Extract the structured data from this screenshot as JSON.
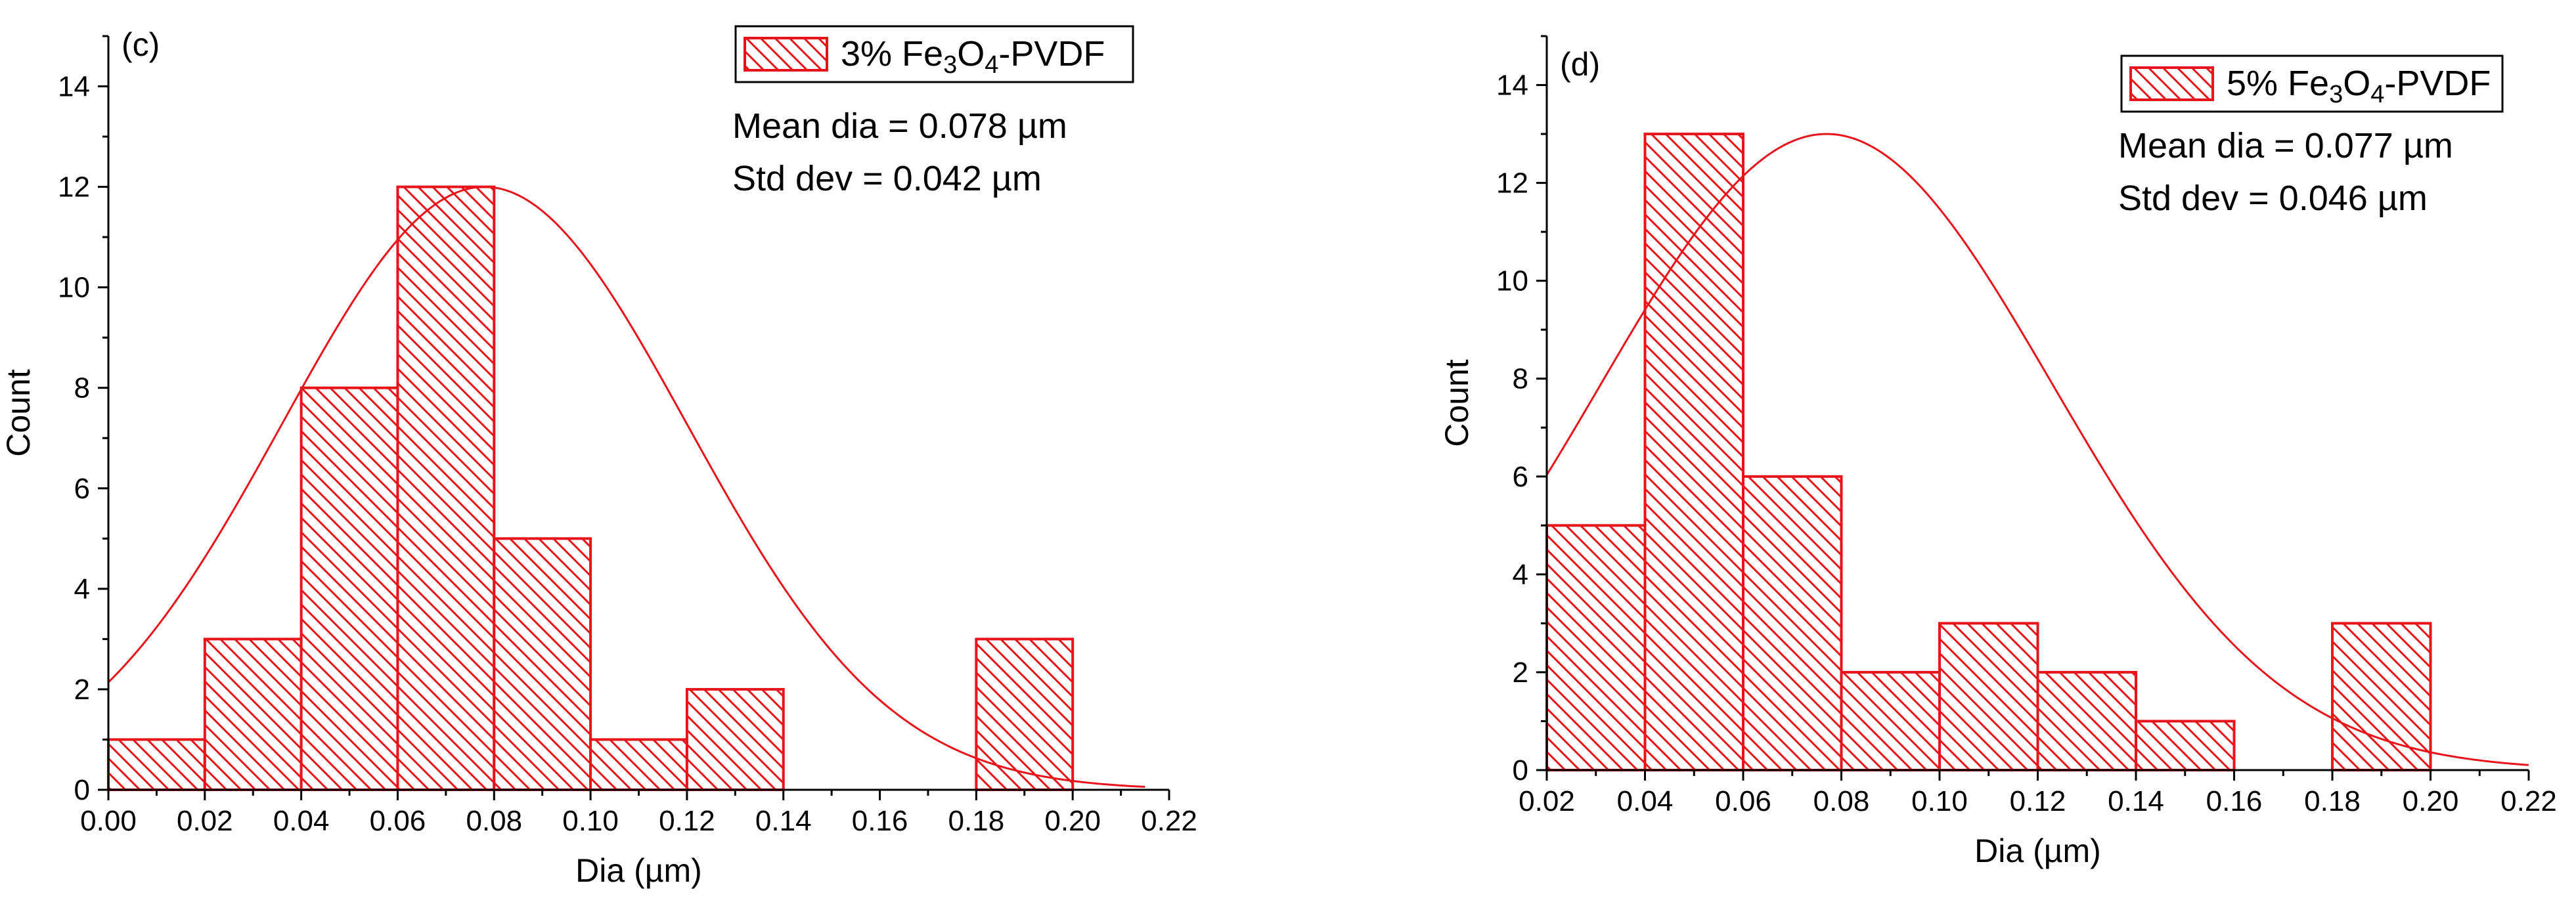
{
  "chart_data": [
    {
      "type": "bar",
      "panel_label": "(c)",
      "title": "",
      "xlabel": "Dia (µm)",
      "ylabel": "Count",
      "xlim": [
        0.0,
        0.22
      ],
      "ylim": [
        0,
        15
      ],
      "x_ticks": [
        "0.00",
        "0.02",
        "0.04",
        "0.06",
        "0.08",
        "0.10",
        "0.12",
        "0.14",
        "0.16",
        "0.18",
        "0.20",
        "0.22"
      ],
      "y_ticks": [
        "0",
        "2",
        "4",
        "6",
        "8",
        "10",
        "12",
        "14"
      ],
      "bins": [
        {
          "x0": 0.0,
          "x1": 0.02,
          "count": 1
        },
        {
          "x0": 0.02,
          "x1": 0.04,
          "count": 3
        },
        {
          "x0": 0.04,
          "x1": 0.06,
          "count": 8
        },
        {
          "x0": 0.06,
          "x1": 0.08,
          "count": 12
        },
        {
          "x0": 0.08,
          "x1": 0.1,
          "count": 5
        },
        {
          "x0": 0.1,
          "x1": 0.12,
          "count": 1
        },
        {
          "x0": 0.12,
          "x1": 0.14,
          "count": 2
        },
        {
          "x0": 0.18,
          "x1": 0.2,
          "count": 3
        }
      ],
      "fit": {
        "type": "gaussian",
        "mean": 0.078,
        "std": 0.042,
        "peak": 12,
        "x_end": 0.215
      },
      "legend": {
        "prefix": "3% Fe",
        "sub1": "3",
        "mid": "O",
        "sub2": "4",
        "suffix": "-PVDF"
      },
      "mean_text": "Mean dia = 0.078 µm",
      "std_text": "Std dev = 0.042 µm",
      "color": "#e8141b"
    },
    {
      "type": "bar",
      "panel_label": "(d)",
      "title": "",
      "xlabel": "Dia (µm)",
      "ylabel": "Count",
      "xlim": [
        0.02,
        0.22
      ],
      "ylim": [
        0,
        15
      ],
      "x_ticks": [
        "0.02",
        "0.04",
        "0.06",
        "0.08",
        "0.10",
        "0.12",
        "0.14",
        "0.16",
        "0.18",
        "0.20",
        "0.22"
      ],
      "y_ticks": [
        "0",
        "2",
        "4",
        "6",
        "8",
        "10",
        "12",
        "14"
      ],
      "bins": [
        {
          "x0": 0.02,
          "x1": 0.04,
          "count": 5
        },
        {
          "x0": 0.04,
          "x1": 0.06,
          "count": 13
        },
        {
          "x0": 0.06,
          "x1": 0.08,
          "count": 6
        },
        {
          "x0": 0.08,
          "x1": 0.1,
          "count": 2
        },
        {
          "x0": 0.1,
          "x1": 0.12,
          "count": 3
        },
        {
          "x0": 0.12,
          "x1": 0.14,
          "count": 2
        },
        {
          "x0": 0.14,
          "x1": 0.16,
          "count": 1
        },
        {
          "x0": 0.18,
          "x1": 0.2,
          "count": 3
        }
      ],
      "fit": {
        "type": "gaussian",
        "mean": 0.077,
        "std": 0.046,
        "peak": 13,
        "x_end": 0.22
      },
      "legend": {
        "prefix": "5% Fe",
        "sub1": "3",
        "mid": "O",
        "sub2": "4",
        "suffix": "-PVDF"
      },
      "mean_text": "Mean dia = 0.077 µm",
      "std_text": "Std dev = 0.046 µm",
      "color": "#e8141b"
    }
  ]
}
